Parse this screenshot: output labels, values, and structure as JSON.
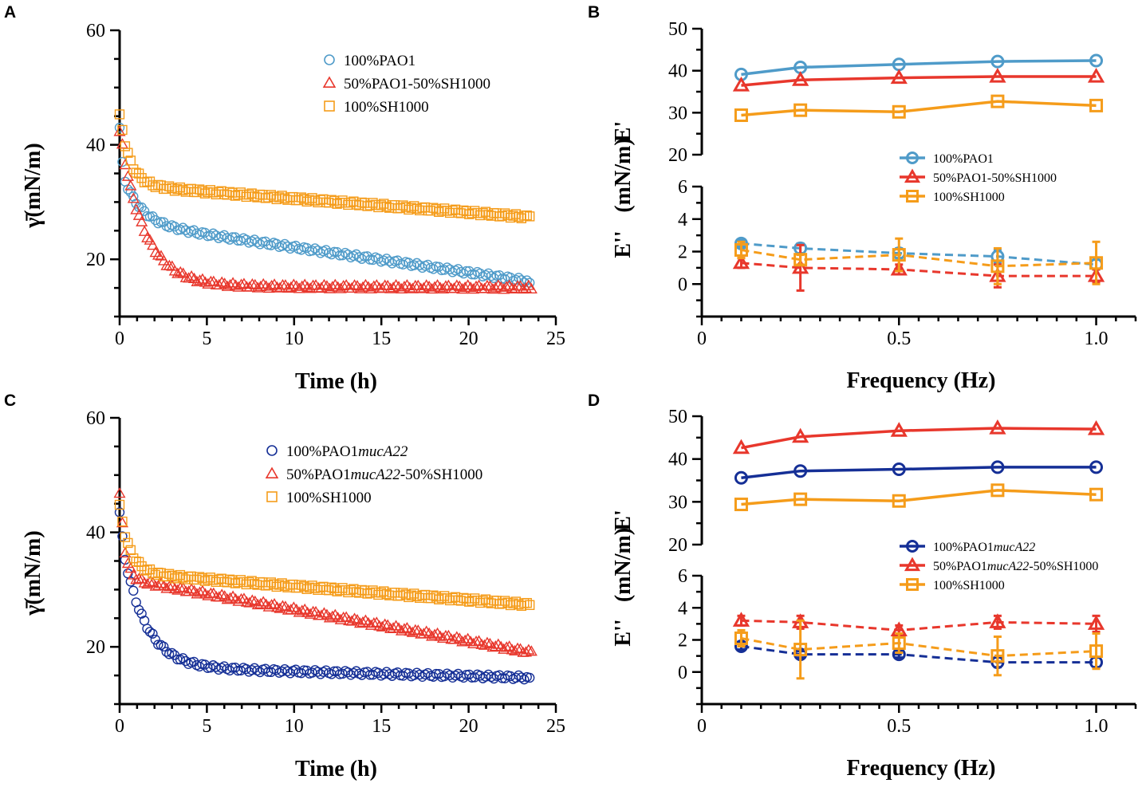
{
  "colors": {
    "blue": "#4f9bc9",
    "red": "#e8372c",
    "orange": "#f59c1a",
    "navy": "#152f96",
    "axis": "#000000"
  },
  "chart_data": [
    {
      "panel": "A",
      "type": "scatter",
      "xlabel": "Time (h)",
      "ylabel": "γ̄(mN/m)",
      "xlim": [
        0,
        25
      ],
      "ylim": [
        10,
        60
      ],
      "xticks": [
        "0",
        "5",
        "10",
        "15",
        "20",
        "25"
      ],
      "yticks": [
        "20",
        "40",
        "60"
      ],
      "legend": "top-right",
      "series": [
        {
          "name": "100%PAO1",
          "marker": "circle",
          "color": "#4f9bc9",
          "x0": 0,
          "x1": 23.5,
          "start": 43,
          "end": 15.9,
          "tau": 1.0,
          "amp": 10,
          "hold": 26.5,
          "slope": 0.44
        },
        {
          "name": "50%PAO1-50%SH1000",
          "marker": "triangle",
          "color": "#e8372c",
          "x0": 0,
          "x1": 23.6,
          "start": 42,
          "end": 14.8,
          "tau": 1.4,
          "amp": 27,
          "hold": 15.3,
          "slope": 0.01
        },
        {
          "name": "100%SH1000",
          "marker": "square",
          "color": "#f59c1a",
          "x0": 0,
          "x1": 23.5,
          "start": 45,
          "end": 27.5,
          "tau": 0.6,
          "amp": 12,
          "hold": 33,
          "slope": 0.24
        }
      ]
    },
    {
      "panel": "B",
      "type": "line",
      "xlabel": "Frequency (Hz)",
      "ylabel_upper": "E'",
      "ylabel_lower": "E''",
      "ylabel_unit": "(mN/m)",
      "xlim": [
        0,
        1.1
      ],
      "upper_ylim": [
        20,
        50
      ],
      "lower_ylim": [
        -2,
        6
      ],
      "xticks": [
        "0",
        "0.5",
        "1.0"
      ],
      "upper_yticks": [
        "20",
        "30",
        "40",
        "50"
      ],
      "lower_yticks": [
        "0",
        "2",
        "4",
        "6"
      ],
      "legend": "right",
      "x": [
        0.1,
        0.25,
        0.5,
        0.75,
        1.0
      ],
      "series": [
        {
          "name": "100%PAO1",
          "marker": "circle",
          "color": "#4f9bc9",
          "E_storage": [
            39.1,
            40.8,
            41.5,
            42.2,
            42.4
          ],
          "E_loss": [
            2.5,
            2.2,
            1.9,
            1.7,
            1.2
          ],
          "loss_err": [
            0.2,
            0.3,
            0.3,
            0.4,
            0.3
          ]
        },
        {
          "name": "50%PAO1-50%SH1000",
          "marker": "triangle",
          "color": "#e8372c",
          "E_storage": [
            36.5,
            37.8,
            38.3,
            38.6,
            38.6
          ],
          "E_loss": [
            1.3,
            1.0,
            0.9,
            0.5,
            0.5
          ],
          "loss_err": [
            0.3,
            1.4,
            0.3,
            0.7,
            0.4
          ]
        },
        {
          "name": "100%SH1000",
          "marker": "square",
          "color": "#f59c1a",
          "E_storage": [
            29.4,
            30.6,
            30.2,
            32.7,
            31.7
          ],
          "E_loss": [
            2.1,
            1.5,
            1.8,
            1.1,
            1.3
          ],
          "loss_err": [
            0.5,
            0.3,
            1.0,
            1.1,
            1.3
          ]
        }
      ]
    },
    {
      "panel": "C",
      "type": "scatter",
      "xlabel": "Time (h)",
      "ylabel": "γ̄(mN/m)",
      "xlim": [
        0,
        25
      ],
      "ylim": [
        10,
        60
      ],
      "xticks": [
        "0",
        "5",
        "10",
        "15",
        "20",
        "25"
      ],
      "yticks": [
        "20",
        "40",
        "60"
      ],
      "legend": "top-right",
      "series": [
        {
          "name_prefix": "100%PAO1",
          "name_italic": "mucA22",
          "name_suffix": "",
          "marker": "circle",
          "color": "#152f96",
          "x0": 0,
          "x1": 23.5,
          "start": 43.5,
          "end": 14.6,
          "tau": 1.3,
          "amp": 24,
          "hold": 16.5,
          "slope": 0.08
        },
        {
          "name_prefix": "50%PAO1",
          "name_italic": "mucA22",
          "name_suffix": "-50%SH1000",
          "marker": "triangle",
          "color": "#e8372c",
          "x0": 0,
          "x1": 23.6,
          "start": 46.5,
          "end": 19.2,
          "tau": 0.3,
          "amp": 14,
          "hold": 32,
          "slope": 0.55
        },
        {
          "name_prefix": "100%SH1000",
          "name_italic": "",
          "name_suffix": "",
          "marker": "square",
          "color": "#f59c1a",
          "x0": 0,
          "x1": 23.5,
          "start": 44.5,
          "end": 27.3,
          "tau": 0.6,
          "amp": 11,
          "hold": 33,
          "slope": 0.24
        }
      ]
    },
    {
      "panel": "D",
      "type": "line",
      "xlabel": "Frequency (Hz)",
      "ylabel_upper": "E'",
      "ylabel_lower": "E''",
      "ylabel_unit": "(mN/m)",
      "xlim": [
        0,
        1.1
      ],
      "upper_ylim": [
        20,
        50
      ],
      "lower_ylim": [
        -2,
        6
      ],
      "xticks": [
        "0",
        "0.5",
        "1.0"
      ],
      "upper_yticks": [
        "20",
        "30",
        "40",
        "50"
      ],
      "lower_yticks": [
        "0",
        "2",
        "4",
        "6"
      ],
      "legend": "right",
      "x": [
        0.1,
        0.25,
        0.5,
        0.75,
        1.0
      ],
      "series": [
        {
          "name_prefix": "100%PAO1",
          "name_italic": "mucA22",
          "name_suffix": "",
          "marker": "circle",
          "color": "#152f96",
          "E_storage": [
            35.6,
            37.2,
            37.6,
            38.1,
            38.1
          ],
          "E_loss": [
            1.6,
            1.1,
            1.1,
            0.6,
            0.6
          ],
          "loss_err": [
            0.2,
            0.2,
            0.2,
            0.3,
            0.3
          ]
        },
        {
          "name_prefix": "50%PAO1",
          "name_italic": "mucA22",
          "name_suffix": "-50%SH1000",
          "marker": "triangle",
          "color": "#e8372c",
          "E_storage": [
            42.6,
            45.2,
            46.6,
            47.2,
            47.0
          ],
          "E_loss": [
            3.2,
            3.1,
            2.6,
            3.1,
            3.0
          ],
          "loss_err": [
            0.3,
            0.4,
            0.3,
            0.4,
            0.5
          ]
        },
        {
          "name_prefix": "100%SH1000",
          "name_italic": "",
          "name_suffix": "",
          "marker": "square",
          "color": "#f59c1a",
          "E_storage": [
            29.4,
            30.6,
            30.2,
            32.7,
            31.7
          ],
          "E_loss": [
            2.1,
            1.4,
            1.8,
            1.0,
            1.3
          ],
          "loss_err": [
            0.5,
            1.8,
            0.6,
            1.2,
            1.1
          ]
        }
      ]
    }
  ]
}
